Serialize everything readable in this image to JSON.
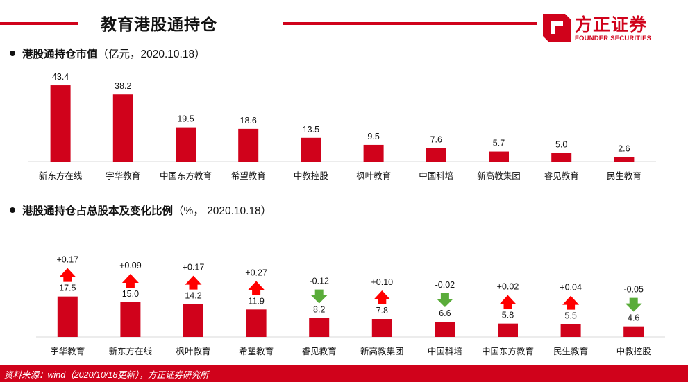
{
  "header": {
    "title": "教育港股通持仓",
    "brand_name": "方正证券",
    "brand_sub": "FOUNDER SECURITIES",
    "accent": "#d0021b"
  },
  "section1": {
    "title_main": "港股通持仓市值",
    "title_rest": "（亿元，2020.10.18）"
  },
  "section2": {
    "title_main": "港股通持仓占总股本及变化比例",
    "title_rest": "（%， 2020.10.18）"
  },
  "footer": {
    "source": "资料来源：wind（2020/10/18更新），方正证券研究所"
  },
  "chart_data": [
    {
      "type": "bar",
      "categories": [
        "新东方在线",
        "宇华教育",
        "中国东方教育",
        "希望教育",
        "中教控股",
        "枫叶教育",
        "中国科培",
        "新高教集团",
        "睿见教育",
        "民生教育"
      ],
      "values": [
        43.4,
        38.2,
        19.5,
        18.6,
        13.5,
        9.5,
        7.6,
        5.7,
        5.0,
        2.6
      ],
      "value_labels": [
        "43.4",
        "38.2",
        "19.5",
        "18.6",
        "13.5",
        "9.5",
        "7.6",
        "5.7",
        "5.0",
        "2.6"
      ],
      "bar_color": "#d0021b",
      "ylim": [
        0,
        45
      ]
    },
    {
      "type": "bar",
      "categories": [
        "宇华教育",
        "新东方在线",
        "枫叶教育",
        "希望教育",
        "睿见教育",
        "新高教集团",
        "中国科培",
        "中国东方教育",
        "民生教育",
        "中教控股"
      ],
      "values": [
        17.5,
        15.0,
        14.2,
        11.9,
        8.2,
        7.8,
        6.6,
        5.8,
        5.5,
        4.6
      ],
      "value_labels": [
        "17.5",
        "15.0",
        "14.2",
        "11.9",
        "8.2",
        "7.8",
        "6.6",
        "5.8",
        "5.5",
        "4.6"
      ],
      "changes": [
        0.17,
        0.09,
        0.17,
        0.27,
        -0.12,
        0.1,
        -0.02,
        0.02,
        0.04,
        -0.05
      ],
      "change_labels": [
        "+0.17",
        "+0.09",
        "+0.17",
        "+0.27",
        "-0.12",
        "+0.10",
        "-0.02",
        "+0.02",
        "+0.04",
        "-0.05"
      ],
      "bar_color": "#d0021b",
      "up_color": "#ff0000",
      "down_color": "#5aac3a",
      "ylim": [
        0,
        18
      ]
    }
  ]
}
